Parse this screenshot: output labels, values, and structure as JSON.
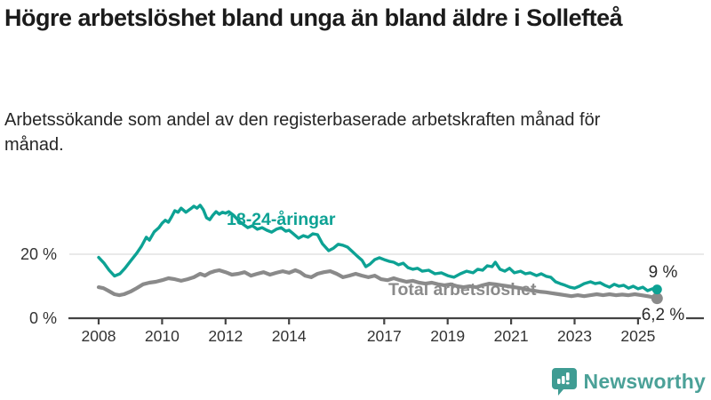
{
  "header": {
    "title": "Högre arbetslöshet bland unga än bland äldre i Sollefteå",
    "subtitle": "Arbetssökande som andel av den registerbaserade arbetskraften månad för månad."
  },
  "footer": {
    "brand": "Newsworthy",
    "brand_color": "#4BA198",
    "logo_icon": "bar-chart-speech-bubble-icon",
    "logo_icon_color": "#3F9C93"
  },
  "chart_data": {
    "type": "line",
    "title": "Högre arbetslöshet bland unga än bland äldre i Sollefteå",
    "subtitle": "Arbetssökande som andel av den registerbaserade arbetskraften månad för månad.",
    "xlabel": "",
    "ylabel": "",
    "xlim": [
      2008,
      2025.6
    ],
    "ylim": [
      0,
      40
    ],
    "grid": "single horizontal gridline at 20 %",
    "legend_position": "inline labels next to lines",
    "x_ticks": [
      2008,
      2010,
      2012,
      2014,
      2017,
      2019,
      2021,
      2023,
      2025
    ],
    "x_tick_labels": [
      "2008",
      "2010",
      "2012",
      "2014",
      "2017",
      "2019",
      "2021",
      "2023",
      "2025"
    ],
    "y_ticks": [
      {
        "value": 0,
        "label": "0 %"
      },
      {
        "value": 20,
        "label": "20 %"
      }
    ],
    "axis_color": "#444444",
    "gridline_color": "#e2e2e2",
    "tick_label_color": "#333333",
    "end_label_color": "#2b2b2b",
    "series": [
      {
        "name": "18-24-åringar",
        "color": "#0DA294",
        "end_label": "9 %",
        "end_value": 9.0,
        "points": [
          [
            2008.0,
            19.0
          ],
          [
            2008.17,
            17.2
          ],
          [
            2008.33,
            15.0
          ],
          [
            2008.5,
            13.2
          ],
          [
            2008.67,
            13.9
          ],
          [
            2008.83,
            15.6
          ],
          [
            2009.0,
            17.8
          ],
          [
            2009.2,
            20.3
          ],
          [
            2009.35,
            22.5
          ],
          [
            2009.5,
            25.3
          ],
          [
            2009.6,
            24.4
          ],
          [
            2009.75,
            27.0
          ],
          [
            2009.9,
            28.3
          ],
          [
            2010.0,
            29.7
          ],
          [
            2010.1,
            30.6
          ],
          [
            2010.2,
            30.0
          ],
          [
            2010.3,
            31.7
          ],
          [
            2010.4,
            33.6
          ],
          [
            2010.5,
            33.1
          ],
          [
            2010.6,
            34.4
          ],
          [
            2010.75,
            33.1
          ],
          [
            2010.9,
            34.2
          ],
          [
            2011.0,
            35.0
          ],
          [
            2011.1,
            34.4
          ],
          [
            2011.2,
            35.3
          ],
          [
            2011.3,
            33.9
          ],
          [
            2011.4,
            31.4
          ],
          [
            2011.5,
            30.8
          ],
          [
            2011.6,
            32.2
          ],
          [
            2011.7,
            33.3
          ],
          [
            2011.8,
            32.5
          ],
          [
            2011.9,
            33.1
          ],
          [
            2012.0,
            32.8
          ],
          [
            2012.1,
            33.3
          ],
          [
            2012.25,
            32.2
          ],
          [
            2012.4,
            30.6
          ],
          [
            2012.55,
            29.4
          ],
          [
            2012.7,
            28.3
          ],
          [
            2012.85,
            28.9
          ],
          [
            2013.0,
            27.8
          ],
          [
            2013.15,
            28.3
          ],
          [
            2013.3,
            27.5
          ],
          [
            2013.45,
            26.9
          ],
          [
            2013.6,
            27.8
          ],
          [
            2013.75,
            28.3
          ],
          [
            2013.9,
            27.2
          ],
          [
            2014.0,
            27.5
          ],
          [
            2014.1,
            26.7
          ],
          [
            2014.3,
            25.0
          ],
          [
            2014.45,
            25.8
          ],
          [
            2014.6,
            25.3
          ],
          [
            2014.75,
            26.4
          ],
          [
            2014.9,
            26.1
          ],
          [
            2015.05,
            23.3
          ],
          [
            2015.25,
            21.1
          ],
          [
            2015.4,
            21.9
          ],
          [
            2015.55,
            23.1
          ],
          [
            2015.7,
            22.8
          ],
          [
            2015.85,
            22.2
          ],
          [
            2016.0,
            20.8
          ],
          [
            2016.15,
            19.4
          ],
          [
            2016.3,
            18.1
          ],
          [
            2016.42,
            16.1
          ],
          [
            2016.55,
            16.9
          ],
          [
            2016.7,
            18.3
          ],
          [
            2016.85,
            18.9
          ],
          [
            2017.0,
            18.3
          ],
          [
            2017.15,
            17.8
          ],
          [
            2017.3,
            17.5
          ],
          [
            2017.45,
            16.7
          ],
          [
            2017.6,
            17.2
          ],
          [
            2017.75,
            15.8
          ],
          [
            2017.9,
            15.3
          ],
          [
            2018.05,
            15.6
          ],
          [
            2018.2,
            14.7
          ],
          [
            2018.4,
            15.0
          ],
          [
            2018.6,
            13.9
          ],
          [
            2018.8,
            14.2
          ],
          [
            2019.0,
            13.3
          ],
          [
            2019.2,
            12.8
          ],
          [
            2019.4,
            13.9
          ],
          [
            2019.6,
            14.7
          ],
          [
            2019.8,
            14.2
          ],
          [
            2019.95,
            15.3
          ],
          [
            2020.1,
            15.0
          ],
          [
            2020.25,
            16.4
          ],
          [
            2020.4,
            16.1
          ],
          [
            2020.5,
            17.5
          ],
          [
            2020.65,
            15.3
          ],
          [
            2020.8,
            14.7
          ],
          [
            2020.95,
            15.6
          ],
          [
            2021.1,
            14.2
          ],
          [
            2021.3,
            14.7
          ],
          [
            2021.45,
            13.9
          ],
          [
            2021.6,
            14.2
          ],
          [
            2021.8,
            13.3
          ],
          [
            2021.95,
            13.9
          ],
          [
            2022.1,
            13.1
          ],
          [
            2022.25,
            12.8
          ],
          [
            2022.4,
            11.4
          ],
          [
            2022.55,
            10.8
          ],
          [
            2022.7,
            10.3
          ],
          [
            2022.85,
            9.7
          ],
          [
            2023.0,
            9.4
          ],
          [
            2023.15,
            10.0
          ],
          [
            2023.3,
            10.8
          ],
          [
            2023.5,
            11.4
          ],
          [
            2023.65,
            10.8
          ],
          [
            2023.8,
            11.1
          ],
          [
            2023.95,
            10.3
          ],
          [
            2024.1,
            9.7
          ],
          [
            2024.25,
            10.6
          ],
          [
            2024.4,
            10.0
          ],
          [
            2024.55,
            10.3
          ],
          [
            2024.7,
            9.4
          ],
          [
            2024.85,
            10.0
          ],
          [
            2025.0,
            9.2
          ],
          [
            2025.15,
            9.7
          ],
          [
            2025.3,
            8.6
          ],
          [
            2025.45,
            9.2
          ],
          [
            2025.6,
            9.0
          ]
        ]
      },
      {
        "name": "Total arbetslöshet",
        "color": "#8A8A8A",
        "end_label": "6,2 %",
        "end_value": 6.2,
        "points": [
          [
            2008.0,
            9.7
          ],
          [
            2008.15,
            9.4
          ],
          [
            2008.3,
            8.6
          ],
          [
            2008.5,
            7.5
          ],
          [
            2008.65,
            7.2
          ],
          [
            2008.8,
            7.5
          ],
          [
            2009.0,
            8.3
          ],
          [
            2009.2,
            9.4
          ],
          [
            2009.4,
            10.6
          ],
          [
            2009.6,
            11.1
          ],
          [
            2009.8,
            11.4
          ],
          [
            2010.0,
            11.9
          ],
          [
            2010.2,
            12.5
          ],
          [
            2010.4,
            12.2
          ],
          [
            2010.6,
            11.7
          ],
          [
            2010.8,
            12.2
          ],
          [
            2011.0,
            12.8
          ],
          [
            2011.2,
            13.9
          ],
          [
            2011.35,
            13.3
          ],
          [
            2011.5,
            14.2
          ],
          [
            2011.65,
            14.7
          ],
          [
            2011.8,
            15.0
          ],
          [
            2012.0,
            14.4
          ],
          [
            2012.2,
            13.6
          ],
          [
            2012.4,
            13.9
          ],
          [
            2012.6,
            14.4
          ],
          [
            2012.8,
            13.3
          ],
          [
            2013.0,
            13.9
          ],
          [
            2013.2,
            14.4
          ],
          [
            2013.4,
            13.6
          ],
          [
            2013.6,
            14.2
          ],
          [
            2013.8,
            14.7
          ],
          [
            2014.0,
            14.2
          ],
          [
            2014.2,
            15.0
          ],
          [
            2014.35,
            14.4
          ],
          [
            2014.5,
            13.3
          ],
          [
            2014.7,
            12.8
          ],
          [
            2014.9,
            13.9
          ],
          [
            2015.1,
            14.4
          ],
          [
            2015.3,
            14.7
          ],
          [
            2015.5,
            13.9
          ],
          [
            2015.7,
            12.8
          ],
          [
            2015.9,
            13.3
          ],
          [
            2016.1,
            13.9
          ],
          [
            2016.3,
            13.3
          ],
          [
            2016.5,
            12.8
          ],
          [
            2016.7,
            13.3
          ],
          [
            2016.9,
            12.2
          ],
          [
            2017.1,
            11.9
          ],
          [
            2017.3,
            12.5
          ],
          [
            2017.5,
            11.9
          ],
          [
            2017.7,
            11.4
          ],
          [
            2017.9,
            11.7
          ],
          [
            2018.1,
            11.1
          ],
          [
            2018.3,
            10.8
          ],
          [
            2018.5,
            11.1
          ],
          [
            2018.7,
            10.6
          ],
          [
            2018.9,
            10.3
          ],
          [
            2019.1,
            10.6
          ],
          [
            2019.3,
            10.0
          ],
          [
            2019.5,
            9.7
          ],
          [
            2019.7,
            10.0
          ],
          [
            2019.9,
            9.7
          ],
          [
            2020.1,
            10.3
          ],
          [
            2020.3,
            10.8
          ],
          [
            2020.5,
            10.6
          ],
          [
            2020.7,
            10.3
          ],
          [
            2020.9,
            10.0
          ],
          [
            2021.1,
            9.7
          ],
          [
            2021.3,
            9.4
          ],
          [
            2021.5,
            8.9
          ],
          [
            2021.7,
            8.6
          ],
          [
            2021.9,
            8.3
          ],
          [
            2022.1,
            8.1
          ],
          [
            2022.3,
            7.8
          ],
          [
            2022.5,
            7.5
          ],
          [
            2022.7,
            7.2
          ],
          [
            2022.9,
            6.9
          ],
          [
            2023.1,
            7.2
          ],
          [
            2023.3,
            6.9
          ],
          [
            2023.5,
            7.2
          ],
          [
            2023.7,
            7.5
          ],
          [
            2023.9,
            7.2
          ],
          [
            2024.1,
            7.5
          ],
          [
            2024.3,
            7.2
          ],
          [
            2024.5,
            7.4
          ],
          [
            2024.7,
            7.2
          ],
          [
            2024.9,
            7.5
          ],
          [
            2025.1,
            7.2
          ],
          [
            2025.3,
            6.9
          ],
          [
            2025.45,
            6.6
          ],
          [
            2025.6,
            6.2
          ]
        ]
      }
    ]
  }
}
